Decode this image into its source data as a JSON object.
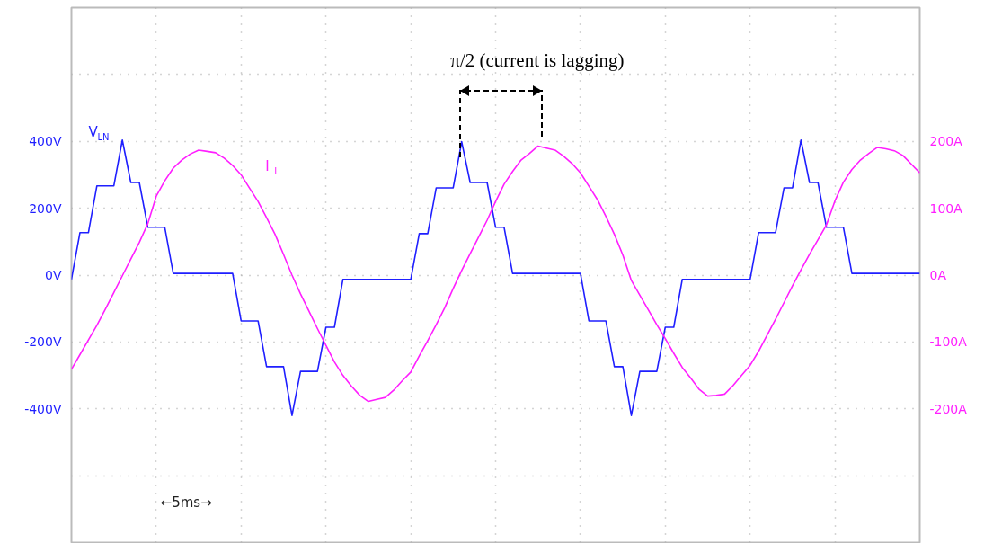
{
  "chart_data": {
    "type": "line",
    "categories": [
      null,
      null,
      null,
      null,
      null,
      null,
      null,
      null,
      null,
      null,
      null,
      null,
      null,
      null,
      null,
      null,
      null,
      null,
      null,
      null,
      null,
      null,
      null,
      null,
      null,
      null,
      null,
      null,
      null,
      null,
      null,
      null,
      null,
      null,
      null,
      null,
      null,
      null,
      null,
      null,
      null,
      null,
      null,
      null,
      null,
      null,
      null,
      null,
      null,
      null,
      null,
      null,
      null,
      null,
      null,
      null,
      null,
      null,
      null,
      null,
      null,
      null,
      null,
      null,
      null,
      null,
      null,
      null,
      null,
      null,
      null,
      null,
      null,
      null,
      null,
      null,
      null,
      null,
      null,
      null,
      null,
      null,
      null,
      null,
      null,
      null,
      null,
      null,
      null,
      null,
      null,
      null,
      null,
      null,
      null,
      null,
      null,
      null,
      null,
      null,
      null
    ],
    "ylim": [
      -800,
      800
    ],
    "yticks": [
      {
        "value": 600,
        "label": null
      },
      {
        "value": 400,
        "label": "400V"
      },
      {
        "value": 200,
        "label": "200V"
      },
      {
        "value": 0,
        "label": "0V"
      },
      {
        "value": -200,
        "label": "-200V"
      },
      {
        "value": -400,
        "label": "-400V"
      },
      {
        "value": -600,
        "label": null
      }
    ],
    "y2lim": [
      -400,
      400
    ],
    "y2ticks": [
      {
        "value": 200,
        "label": "200A"
      },
      {
        "value": 100,
        "label": "100A"
      },
      {
        "value": 0,
        "label": "0A"
      },
      {
        "value": -100,
        "label": "-100A"
      },
      {
        "value": -200,
        "label": "-200A"
      }
    ],
    "tick_labels": "y",
    "grid": true,
    "line_style": "solid",
    "marker": "none",
    "series": [
      {
        "name": "V$_{LN}$",
        "color": "#1f1fff",
        "values": [
          -13,
          127,
          127,
          267,
          267,
          267,
          404,
          277,
          277,
          143,
          143,
          143,
          5,
          5,
          5,
          5,
          5,
          5,
          5,
          5,
          -137,
          -137,
          -137,
          -274,
          -274,
          -274,
          -420,
          -288,
          -288,
          -288,
          -156,
          -156,
          -13,
          -13,
          -13,
          -13,
          -13,
          -13,
          -13,
          -13,
          -13,
          124,
          124,
          261,
          261,
          261,
          399,
          277,
          277,
          277,
          143,
          143,
          5,
          5,
          5,
          5,
          5,
          5,
          5,
          5,
          5,
          -137,
          -137,
          -137,
          -274,
          -274,
          -420,
          -288,
          -288,
          -288,
          -156,
          -156,
          -13,
          -13,
          -13,
          -13,
          -13,
          -13,
          -13,
          -13,
          -13,
          127,
          127,
          127,
          261,
          261,
          404,
          277,
          277,
          143,
          143,
          143,
          5,
          5,
          5,
          5,
          5,
          5,
          5,
          5,
          5
        ]
      },
      {
        "name": "I$_{L}$",
        "color": "#ff1fff",
        "axis": "y2",
        "values": [
          -141,
          -119,
          -97,
          -75,
          -51,
          -26,
          -1,
          24,
          49,
          77,
          118,
          141,
          160,
          172,
          181,
          187,
          185,
          183,
          175,
          164,
          150,
          130,
          110,
          86,
          61,
          31,
          0,
          -28,
          -54,
          -80,
          -105,
          -130,
          -150,
          -166,
          -180,
          -189,
          -186,
          -183,
          -172,
          -158,
          -145,
          -121,
          -98,
          -74,
          -49,
          -20,
          7,
          32,
          57,
          82,
          110,
          136,
          155,
          172,
          182,
          193,
          190,
          187,
          178,
          167,
          153,
          133,
          113,
          88,
          61,
          30,
          -8,
          -30,
          -52,
          -74,
          -95,
          -117,
          -138,
          -154,
          -171,
          -181,
          -180,
          -178,
          -165,
          -150,
          -135,
          -114,
          -90,
          -66,
          -41,
          -16,
          8,
          31,
          53,
          75,
          111,
          139,
          158,
          172,
          182,
          191,
          189,
          186,
          179,
          166,
          153
        ]
      }
    ],
    "annotations": [
      "π/2 (current is lagging)",
      "←5ms→"
    ]
  }
}
